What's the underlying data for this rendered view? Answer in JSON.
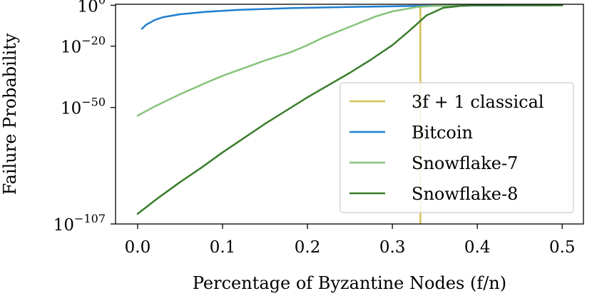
{
  "chart_data": {
    "type": "line",
    "title": "",
    "xlabel": "Percentage of Byzantine Nodes (f/n)",
    "ylabel": "Failure Probability",
    "xlim": [
      -0.026,
      0.525
    ],
    "ylim_log10": [
      -107,
      0.5
    ],
    "y_scale": "log",
    "grid": false,
    "legend_position": "center-right",
    "x_ticks": [
      {
        "value": 0.0,
        "label": "0.0"
      },
      {
        "value": 0.1,
        "label": "0.1"
      },
      {
        "value": 0.2,
        "label": "0.2"
      },
      {
        "value": 0.3,
        "label": "0.3"
      },
      {
        "value": 0.4,
        "label": "0.4"
      },
      {
        "value": 0.5,
        "label": "0.5"
      }
    ],
    "y_ticks": [
      {
        "value": 0,
        "base": "10",
        "exp": "0"
      },
      {
        "value": -20,
        "base": "10",
        "exp": "−20"
      },
      {
        "value": -50,
        "base": "10",
        "exp": "−50"
      },
      {
        "value": -107,
        "base": "10",
        "exp": "−107"
      }
    ],
    "series": [
      {
        "name": "3f + 1 classical",
        "legend_label": "3f + 1 classical",
        "color": "#d4bf54",
        "kind": "vertical",
        "x": 0.333,
        "y_log10_range": [
          -107,
          0
        ]
      },
      {
        "name": "Bitcoin",
        "legend_label": "Bitcoin",
        "color": "#1f7fd0",
        "x": [
          0.005,
          0.01,
          0.02,
          0.03,
          0.05,
          0.08,
          0.12,
          0.18,
          0.25,
          0.33,
          0.4,
          0.5
        ],
        "y_log10": [
          -11.5,
          -9.5,
          -7.2,
          -5.8,
          -4.4,
          -3.2,
          -2.2,
          -1.4,
          -0.8,
          -0.3,
          -0.08,
          0
        ]
      },
      {
        "name": "Snowflake-7",
        "legend_label": "Snowflake-7",
        "color": "#86c47a",
        "x": [
          0.0,
          0.02,
          0.05,
          0.08,
          0.1,
          0.13,
          0.15,
          0.18,
          0.2,
          0.22,
          0.25,
          0.28,
          0.3,
          0.33,
          0.35,
          0.4,
          0.45,
          0.5
        ],
        "y_log10": [
          -54,
          -49.5,
          -43.5,
          -38,
          -34.5,
          -30,
          -27,
          -23,
          -19.5,
          -15.5,
          -10.5,
          -5.5,
          -3,
          -0.8,
          -0.3,
          0,
          0,
          0
        ]
      },
      {
        "name": "Snowflake-8",
        "legend_label": "Snowflake-8",
        "color": "#3a7d2c",
        "x": [
          0.0,
          0.025,
          0.05,
          0.075,
          0.1,
          0.125,
          0.15,
          0.175,
          0.2,
          0.225,
          0.25,
          0.275,
          0.3,
          0.32,
          0.34,
          0.36,
          0.38,
          0.4,
          0.45,
          0.5
        ],
        "y_log10": [
          -102,
          -94,
          -86.5,
          -79.5,
          -72,
          -65,
          -58,
          -51.5,
          -45,
          -39,
          -33,
          -26.5,
          -19.5,
          -12.5,
          -5,
          -1.2,
          -0.3,
          0,
          0,
          0
        ]
      }
    ]
  }
}
